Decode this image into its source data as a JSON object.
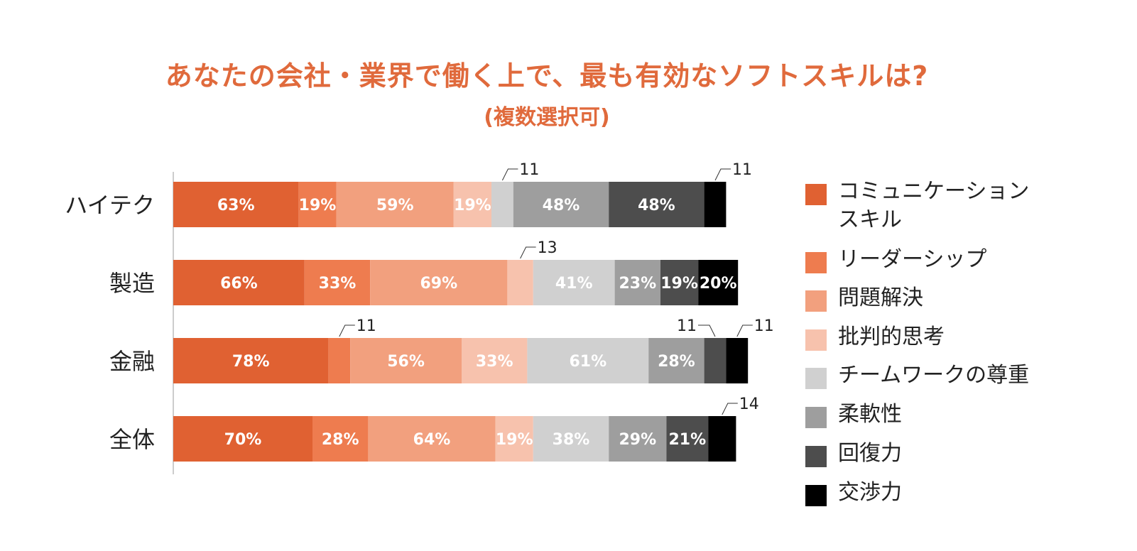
{
  "chart_data": {
    "type": "bar",
    "orientation": "horizontal",
    "stacked": true,
    "title": "あなたの会社・業界で働く上で、最も有効なソフトスキルは?",
    "subtitle": "(複数選択可)",
    "categories": [
      "ハイテク",
      "製造",
      "金融",
      "全体"
    ],
    "series": [
      {
        "name": "コミュニケーションスキル",
        "color": "#e06132",
        "values": [
          63,
          66,
          78,
          70
        ]
      },
      {
        "name": "リーダーシップ",
        "color": "#ee7c4f",
        "values": [
          19,
          33,
          11,
          28
        ]
      },
      {
        "name": "問題解決",
        "color": "#f2a07e",
        "values": [
          59,
          69,
          56,
          64
        ]
      },
      {
        "name": "批判的思考",
        "color": "#f7c2ad",
        "values": [
          19,
          13,
          33,
          19
        ]
      },
      {
        "name": "チームワークの尊重",
        "color": "#d0d0d0",
        "values": [
          11,
          41,
          61,
          38
        ]
      },
      {
        "name": "柔軟性",
        "color": "#9e9e9e",
        "values": [
          48,
          23,
          28,
          29
        ]
      },
      {
        "name": "回復力",
        "color": "#4d4d4d",
        "values": [
          48,
          19,
          11,
          21
        ]
      },
      {
        "name": "交渉力",
        "color": "#000000",
        "values": [
          11,
          20,
          11,
          14
        ]
      }
    ],
    "data_labels": [
      [
        "63%",
        "19%",
        "59%",
        "19%",
        "11",
        "48%",
        "48%",
        "11"
      ],
      [
        "66%",
        "33%",
        "69%",
        "13",
        "41%",
        "23%",
        "19%",
        "20%"
      ],
      [
        "78%",
        "11",
        "56%",
        "33%",
        "61%",
        "28%",
        "11",
        "11"
      ],
      [
        "70%",
        "28%",
        "64%",
        "19%",
        "38%",
        "29%",
        "21%",
        "14"
      ]
    ],
    "legend_position": "right",
    "grid": false
  }
}
